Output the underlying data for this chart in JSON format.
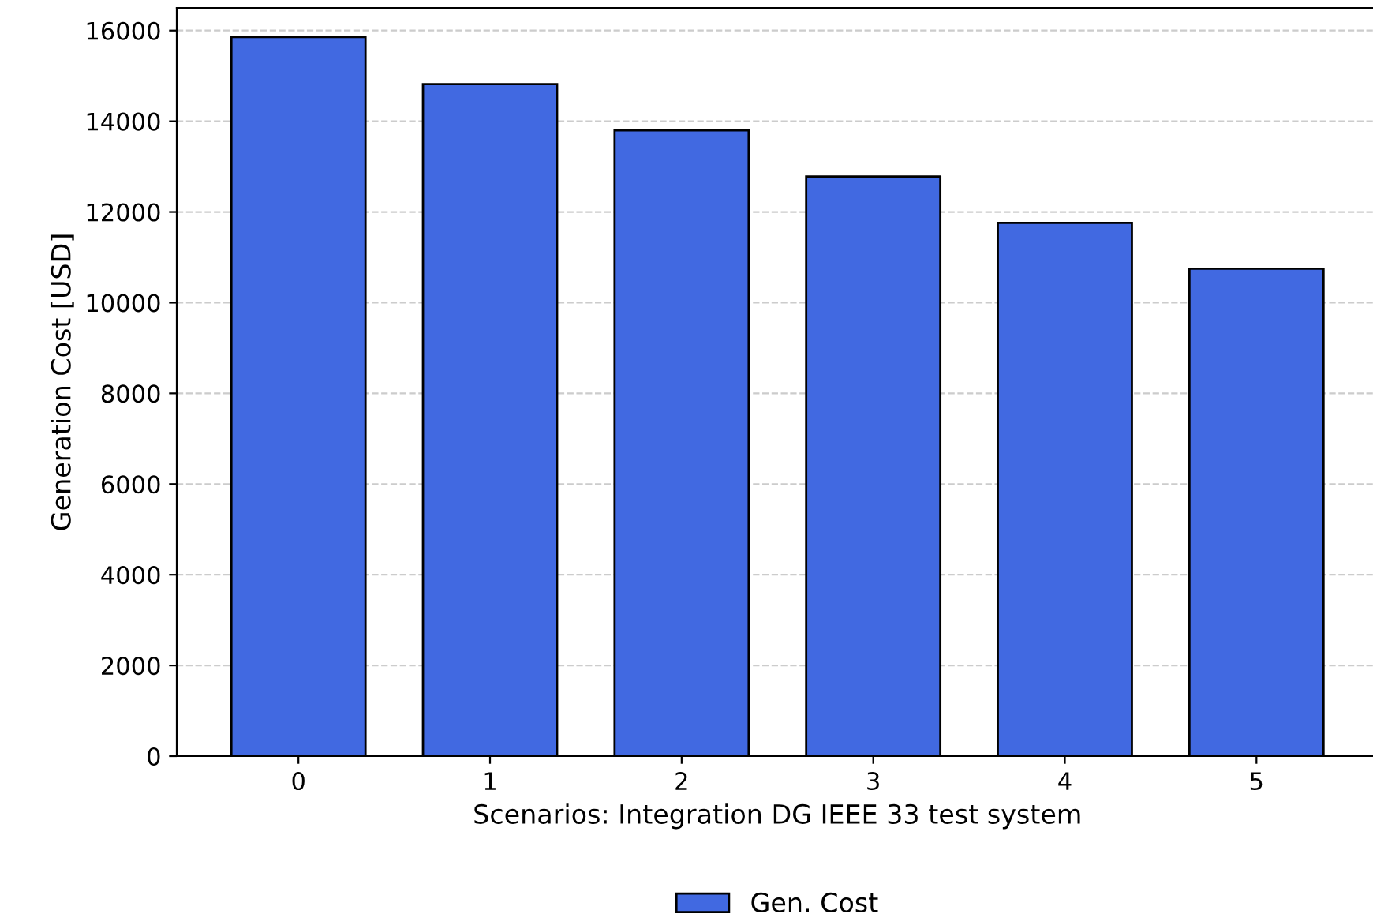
{
  "chart_data": {
    "type": "bar",
    "xlabel": "Scenarios: Integration DG IEEE 33 test system",
    "ylabel": "Generation Cost [USD]",
    "categories": [
      "0",
      "1",
      "2",
      "3",
      "4",
      "5"
    ],
    "series": [
      {
        "name": "Gen. Cost",
        "color": "#4169e1",
        "values": [
          15860,
          14820,
          13800,
          12780,
          11760,
          10750
        ]
      }
    ],
    "ylim": [
      0,
      16500
    ],
    "yticks": [
      0,
      2000,
      4000,
      6000,
      8000,
      10000,
      12000,
      14000,
      16000
    ],
    "grid": "y",
    "legend": "bottom"
  }
}
